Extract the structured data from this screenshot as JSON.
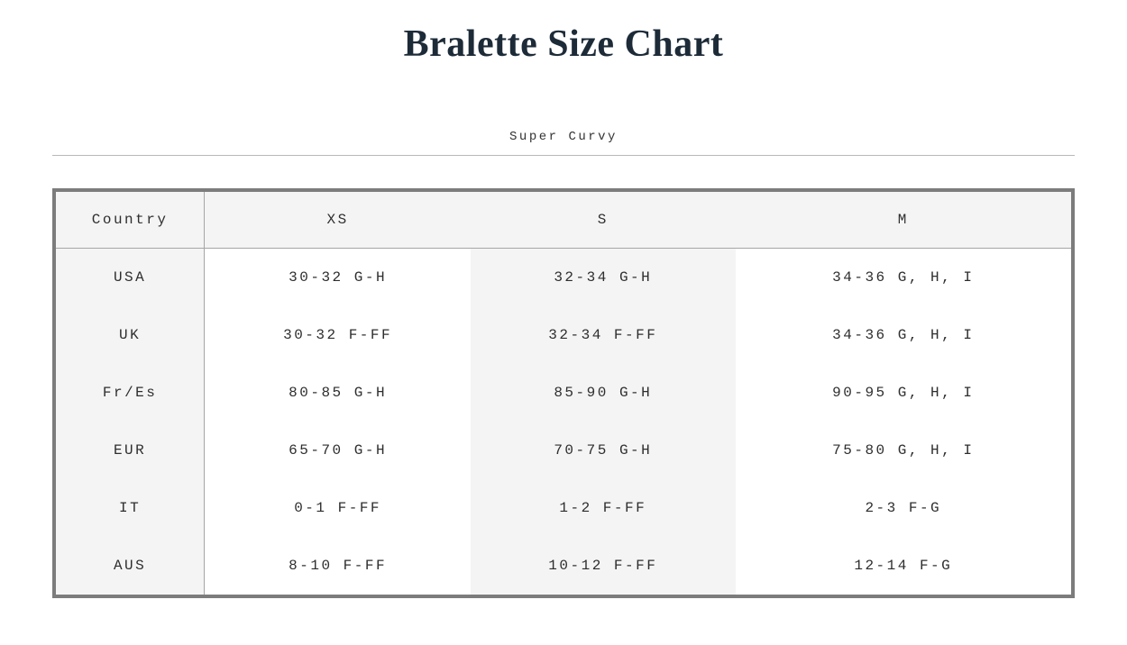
{
  "page": {
    "title": "Bralette Size Chart",
    "subtitle": "Super Curvy"
  },
  "size_chart": {
    "columns": [
      "Country",
      "XS",
      "S",
      "M"
    ],
    "rows": [
      [
        "USA",
        "30-32 G-H",
        "32-34 G-H",
        "34-36 G, H, I"
      ],
      [
        "UK",
        "30-32 F-FF",
        "32-34 F-FF",
        "34-36 G, H, I"
      ],
      [
        "Fr/Es",
        "80-85 G-H",
        "85-90 G-H",
        "90-95 G, H, I"
      ],
      [
        "EUR",
        "65-70 G-H",
        "70-75 G-H",
        "75-80 G, H, I"
      ],
      [
        "IT",
        "0-1 F-FF",
        "1-2 F-FF",
        "2-3 F-G"
      ],
      [
        "AUS",
        "8-10 F-FF",
        "10-12 F-FF",
        "12-14 F-G"
      ]
    ]
  },
  "colors": {
    "title_text": "#1d2b38",
    "body_text": "#2e2e2e",
    "table_outer_border": "#7c7c7c",
    "table_inner_line": "#a5a5a5",
    "stripe_background": "#f4f4f4",
    "divider_rule": "#b9b9b9"
  }
}
